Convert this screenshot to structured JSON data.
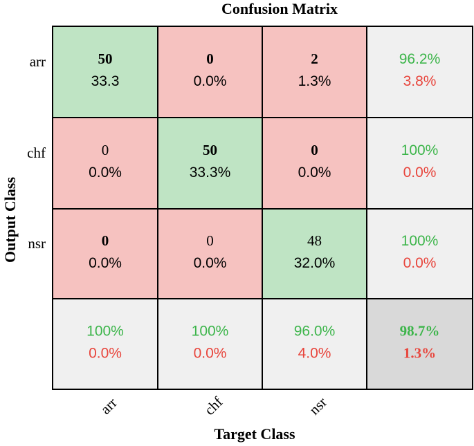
{
  "chart_data": {
    "type": "heatmap",
    "title": "Confusion Matrix",
    "xlabel": "Target Class",
    "ylabel": "Output Class",
    "x_categories": [
      "arr",
      "chf",
      "nsr"
    ],
    "y_categories": [
      "arr",
      "chf",
      "nsr"
    ],
    "cells": [
      [
        {
          "count": "50",
          "pct": "33.3",
          "correct": true
        },
        {
          "count": "0",
          "pct": "0.0%",
          "correct": false
        },
        {
          "count": "2",
          "pct": "1.3%",
          "correct": false
        }
      ],
      [
        {
          "count": "0",
          "pct": "0.0%",
          "correct": false
        },
        {
          "count": "50",
          "pct": "33.3%",
          "correct": true
        },
        {
          "count": "0",
          "pct": "0.0%",
          "correct": false
        }
      ],
      [
        {
          "count": "0",
          "pct": "0.0%",
          "correct": false
        },
        {
          "count": "0",
          "pct": "0.0%",
          "correct": false
        },
        {
          "count": "48",
          "pct": "32.0%",
          "correct": true
        }
      ]
    ],
    "bold_counts": [
      [
        true,
        true,
        true
      ],
      [
        false,
        true,
        true
      ],
      [
        true,
        false,
        false
      ]
    ],
    "row_summary": [
      {
        "correct": "96.2%",
        "incorrect": "3.8%"
      },
      {
        "correct": "100%",
        "incorrect": "0.0%"
      },
      {
        "correct": "100%",
        "incorrect": "0.0%"
      }
    ],
    "col_summary": [
      {
        "correct": "100%",
        "incorrect": "0.0%"
      },
      {
        "correct": "100%",
        "incorrect": "0.0%"
      },
      {
        "correct": "96.0%",
        "incorrect": "4.0%"
      }
    ],
    "overall": {
      "correct": "98.7%",
      "incorrect": "1.3%"
    },
    "colors": {
      "correct_cell": "#bfe4c4",
      "incorrect_cell": "#f6c2c0",
      "summary_cell": "#f0f0f0",
      "overall_cell": "#d9d9d9",
      "green_text": "#3cb54a",
      "red_text": "#e8453c"
    }
  }
}
